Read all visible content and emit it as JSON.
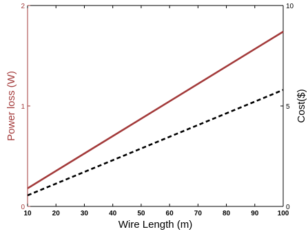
{
  "chart_data": {
    "type": "line",
    "title": "",
    "xlabel": "Wire Length (m)",
    "ylabel_left": "Power loss (W)",
    "ylabel_right": "Cost($)",
    "x_ticks": [
      10,
      20,
      30,
      40,
      50,
      60,
      70,
      80,
      90,
      100
    ],
    "xlim": [
      10,
      100
    ],
    "ylim_left": [
      0,
      2
    ],
    "ylim_right": [
      0,
      10
    ],
    "y_ticks_left": [
      0,
      1,
      2
    ],
    "y_ticks_right": [
      0,
      5,
      10
    ],
    "grid": false,
    "colors": {
      "left_axis": "#a33a3a",
      "right_axis": "#000000",
      "power_line": "#a33a3a",
      "cost_line": "#000000"
    },
    "series": [
      {
        "axis": "left",
        "style": "solid",
        "x": [
          10,
          100
        ],
        "y": [
          0.18,
          1.74
        ]
      },
      {
        "axis": "right",
        "style": "dashed",
        "x": [
          10,
          100
        ],
        "y": [
          0.55,
          5.8
        ]
      }
    ]
  }
}
